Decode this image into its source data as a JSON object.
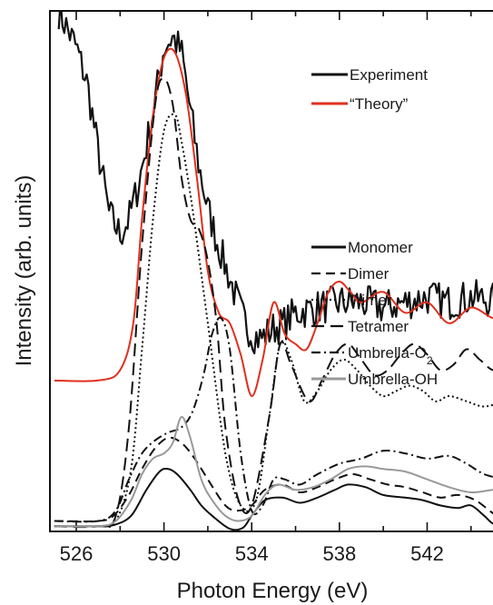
{
  "chart_data": {
    "type": "line",
    "title": "",
    "xlabel": "Photon Energy (eV)",
    "ylabel": "Intensity (arb. units)",
    "xlim": [
      524.8,
      545.5
    ],
    "ylim": [
      0,
      1.0
    ],
    "x_ticks": [
      526,
      530,
      534,
      538,
      542
    ],
    "x_tick_labels": [
      "526",
      "530",
      "534",
      "538",
      "542"
    ],
    "y_ticks_labeled": false,
    "grid": false,
    "legend_top": {
      "placement": "top-right",
      "entries": [
        {
          "label": "Experiment",
          "color": "#111111",
          "style": "solid"
        },
        {
          "label": "“Theory”",
          "color": "#e0301e",
          "style": "solid"
        }
      ]
    },
    "legend_bottom": {
      "placement": "middle-right",
      "entries": [
        {
          "label": "Monomer",
          "color": "#111111",
          "style": "solid"
        },
        {
          "label": "Dimer",
          "color": "#111111",
          "style": "dashed"
        },
        {
          "label": "Trimer",
          "color": "#111111",
          "style": "dotted"
        },
        {
          "label": "Tetramer",
          "color": "#111111",
          "style": "long-dash"
        },
        {
          "label": "Umbrella-O",
          "sub": "2",
          "color": "#111111",
          "style": "dash-dot"
        },
        {
          "label": "Umbrella-OH",
          "color": "#999999",
          "style": "solid"
        }
      ]
    },
    "series": [
      {
        "name": "Experiment",
        "color": "#111111",
        "style": "solid",
        "noisy": true,
        "x": [
          525.2,
          526.0,
          526.5,
          527.0,
          527.5,
          528.0,
          528.4,
          528.8,
          529.2,
          529.6,
          530.0,
          530.4,
          530.8,
          531.2,
          531.6,
          532.0,
          532.4,
          532.8,
          533.2,
          533.6,
          534.0,
          534.4,
          535.0,
          535.5,
          536.0,
          537.0,
          538.0,
          539.0,
          540.0,
          541.0,
          542.0,
          543.0,
          544.0,
          545.5
        ],
        "y": [
          1.0,
          0.93,
          0.86,
          0.73,
          0.61,
          0.57,
          0.6,
          0.66,
          0.74,
          0.83,
          0.93,
          0.95,
          0.92,
          0.81,
          0.7,
          0.62,
          0.56,
          0.51,
          0.46,
          0.41,
          0.38,
          0.37,
          0.39,
          0.4,
          0.42,
          0.43,
          0.44,
          0.44,
          0.43,
          0.44,
          0.45,
          0.44,
          0.45,
          0.44
        ]
      },
      {
        "name": "“Theory”",
        "color": "#e0301e",
        "style": "solid",
        "x": [
          525.0,
          527.0,
          528.0,
          528.6,
          529.0,
          529.5,
          530.0,
          530.5,
          531.0,
          531.5,
          532.0,
          532.5,
          533.0,
          533.5,
          534.0,
          534.5,
          535.0,
          535.5,
          536.0,
          536.5,
          537.0,
          537.5,
          538.0,
          538.5,
          539.0,
          540.0,
          541.0,
          542.0,
          543.0,
          544.0,
          545.0,
          545.5
        ],
        "y": [
          0.29,
          0.29,
          0.31,
          0.4,
          0.6,
          0.8,
          0.91,
          0.92,
          0.84,
          0.68,
          0.5,
          0.42,
          0.4,
          0.34,
          0.26,
          0.33,
          0.44,
          0.38,
          0.36,
          0.35,
          0.4,
          0.46,
          0.48,
          0.46,
          0.44,
          0.46,
          0.42,
          0.44,
          0.4,
          0.43,
          0.41,
          0.42
        ]
      },
      {
        "name": "Monomer",
        "color": "#111111",
        "style": "solid",
        "x": [
          525.0,
          527.0,
          527.7,
          528.5,
          529.2,
          529.8,
          530.2,
          530.6,
          531.2,
          531.7,
          532.2,
          533.0,
          533.6,
          534.0,
          534.6,
          535.4,
          536.2,
          537.0,
          537.8,
          538.4,
          539.2,
          540.0,
          541.0,
          541.8,
          542.6,
          543.4,
          544.0,
          544.6,
          545.0,
          545.5
        ],
        "y": [
          0.01,
          0.01,
          0.012,
          0.03,
          0.08,
          0.115,
          0.12,
          0.11,
          0.08,
          0.05,
          0.03,
          0.005,
          0.007,
          0.03,
          0.06,
          0.065,
          0.055,
          0.065,
          0.08,
          0.09,
          0.085,
          0.07,
          0.065,
          0.06,
          0.05,
          0.045,
          0.05,
          0.03,
          0.015,
          0.01
        ]
      },
      {
        "name": "Dimer",
        "color": "#111111",
        "style": "dashed",
        "x": [
          525.0,
          527.0,
          527.7,
          528.4,
          529.0,
          529.6,
          530.2,
          530.8,
          531.4,
          532.0,
          532.8,
          533.4,
          534.0,
          534.6,
          535.4,
          536.2,
          537.0,
          537.8,
          538.6,
          539.4,
          540.2,
          541.0,
          541.8,
          542.6,
          543.4,
          544.2,
          545.0,
          545.5
        ],
        "y": [
          0.02,
          0.02,
          0.03,
          0.07,
          0.12,
          0.16,
          0.18,
          0.17,
          0.14,
          0.1,
          0.05,
          0.04,
          0.05,
          0.08,
          0.09,
          0.075,
          0.085,
          0.1,
          0.11,
          0.1,
          0.09,
          0.085,
          0.075,
          0.065,
          0.07,
          0.06,
          0.035,
          0.025
        ]
      },
      {
        "name": "Trimer",
        "color": "#111111",
        "style": "dotted",
        "x": [
          525.0,
          527.0,
          527.8,
          528.5,
          529.0,
          529.5,
          530.0,
          530.5,
          530.8,
          531.3,
          532.0,
          532.8,
          533.5,
          534.2,
          534.8,
          535.3,
          535.8,
          536.4,
          537.0,
          537.6,
          538.2,
          538.8,
          539.4,
          540.0,
          540.6,
          541.2,
          541.8,
          542.4,
          543.0,
          543.8,
          544.6,
          545.5
        ],
        "y": [
          0.01,
          0.01,
          0.02,
          0.12,
          0.35,
          0.6,
          0.77,
          0.8,
          0.75,
          0.62,
          0.4,
          0.15,
          0.05,
          0.06,
          0.22,
          0.36,
          0.33,
          0.25,
          0.27,
          0.31,
          0.33,
          0.31,
          0.28,
          0.26,
          0.27,
          0.28,
          0.27,
          0.25,
          0.26,
          0.25,
          0.24,
          0.25
        ]
      },
      {
        "name": "Tetramer",
        "color": "#111111",
        "style": "long-dash",
        "x": [
          525.0,
          527.0,
          527.8,
          528.4,
          529.0,
          529.6,
          530.0,
          530.4,
          530.8,
          531.2,
          531.6,
          532.0,
          532.4,
          532.8,
          533.4,
          534.0,
          534.8,
          535.3,
          535.8,
          536.6,
          537.2,
          537.8,
          538.4,
          539.0,
          539.6,
          540.2,
          540.8,
          541.4,
          542.0,
          542.6,
          543.2,
          543.8,
          544.4,
          545.0,
          545.5
        ],
        "y": [
          0.01,
          0.01,
          0.03,
          0.2,
          0.55,
          0.82,
          0.87,
          0.82,
          0.68,
          0.6,
          0.58,
          0.52,
          0.4,
          0.2,
          0.06,
          0.05,
          0.22,
          0.36,
          0.32,
          0.25,
          0.29,
          0.34,
          0.36,
          0.33,
          0.3,
          0.31,
          0.34,
          0.36,
          0.34,
          0.31,
          0.32,
          0.35,
          0.33,
          0.31,
          0.32
        ]
      },
      {
        "name": "Umbrella-O₂",
        "color": "#111111",
        "style": "dash-dot",
        "x": [
          525.0,
          527.0,
          527.8,
          528.4,
          529.0,
          529.6,
          530.2,
          530.8,
          531.3,
          531.8,
          532.2,
          532.6,
          533.0,
          533.5,
          534.0,
          534.5,
          535.0,
          535.5,
          536.2,
          537.0,
          538.0,
          539.0,
          540.0,
          541.0,
          542.0,
          543.0,
          543.8,
          544.6,
          545.5
        ],
        "y": [
          0.02,
          0.02,
          0.04,
          0.1,
          0.15,
          0.175,
          0.19,
          0.2,
          0.23,
          0.3,
          0.38,
          0.41,
          0.35,
          0.15,
          0.04,
          0.05,
          0.1,
          0.1,
          0.09,
          0.11,
          0.13,
          0.14,
          0.155,
          0.15,
          0.14,
          0.145,
          0.13,
          0.11,
          0.1
        ]
      },
      {
        "name": "Umbrella-OH",
        "color": "#999999",
        "style": "solid",
        "x": [
          525.0,
          527.0,
          527.8,
          528.5,
          529.0,
          529.5,
          530.0,
          530.4,
          530.8,
          531.2,
          531.7,
          532.2,
          532.8,
          533.4,
          534.0,
          534.6,
          535.2,
          536.0,
          536.8,
          537.6,
          538.4,
          539.2,
          540.0,
          541.0,
          542.0,
          543.0,
          544.0,
          545.0,
          545.5
        ],
        "y": [
          0.01,
          0.01,
          0.02,
          0.06,
          0.11,
          0.14,
          0.15,
          0.17,
          0.22,
          0.18,
          0.1,
          0.06,
          0.03,
          0.02,
          0.03,
          0.07,
          0.09,
          0.08,
          0.085,
          0.1,
          0.12,
          0.125,
          0.12,
          0.115,
          0.1,
          0.085,
          0.075,
          0.08,
          0.08
        ]
      }
    ]
  }
}
